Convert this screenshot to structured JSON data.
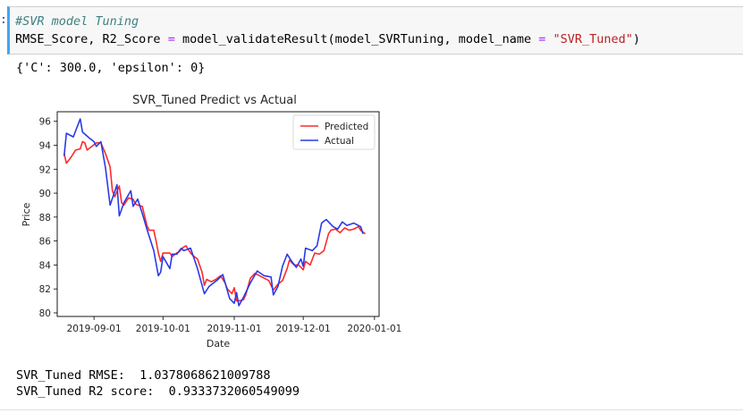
{
  "cell": {
    "prompt": ":",
    "code_comment": "#SVR model Tuning",
    "code_line2": {
      "lhs": "RMSE_Score, R2_Score ",
      "eq": "=",
      "call": " model_validateResult(model_SVRTuning, model_name ",
      "eq2": "=",
      "space": " ",
      "str": "\"SVR_Tuned\"",
      "close": ")"
    }
  },
  "output": {
    "params": "{'C': 300.0, 'epsilon': 0}",
    "rmse_line": "SVR_Tuned RMSE:  1.0378068621009788",
    "r2_line": "SVR_Tuned R2 score:  0.9333732060549099"
  },
  "chart_data": {
    "type": "line",
    "title": "SVR_Tuned Predict vs Actual",
    "xlabel": "Date",
    "ylabel": "Price",
    "xlim": [
      "2019-08-16",
      "2020-01-03"
    ],
    "ylim": [
      79.7,
      96.8
    ],
    "x_ticks": [
      "2019-09-01",
      "2019-10-01",
      "2019-11-01",
      "2019-12-01",
      "2020-01-01"
    ],
    "y_ticks": [
      80,
      82,
      84,
      86,
      88,
      90,
      92,
      94,
      96
    ],
    "legend": "top-right",
    "grid": false,
    "series": [
      {
        "name": "Predicted",
        "color": "#ff2a2a",
        "points": [
          [
            "2019-08-19",
            93.3
          ],
          [
            "2019-08-20",
            92.5
          ],
          [
            "2019-08-22",
            93.0
          ],
          [
            "2019-08-24",
            93.6
          ],
          [
            "2019-08-26",
            93.7
          ],
          [
            "2019-08-27",
            94.3
          ],
          [
            "2019-08-28",
            94.2
          ],
          [
            "2019-08-29",
            93.6
          ],
          [
            "2019-08-31",
            93.9
          ],
          [
            "2019-09-02",
            94.2
          ],
          [
            "2019-09-04",
            94.2
          ],
          [
            "2019-09-06",
            93.3
          ],
          [
            "2019-09-08",
            92.2
          ],
          [
            "2019-09-09",
            90.2
          ],
          [
            "2019-09-10",
            89.7
          ],
          [
            "2019-09-12",
            90.6
          ],
          [
            "2019-09-13",
            89.2
          ],
          [
            "2019-09-14",
            89.0
          ],
          [
            "2019-09-16",
            89.6
          ],
          [
            "2019-09-18",
            89.5
          ],
          [
            "2019-09-19",
            89.1
          ],
          [
            "2019-09-20",
            89.0
          ],
          [
            "2019-09-22",
            88.9
          ],
          [
            "2019-09-24",
            87.3
          ],
          [
            "2019-09-25",
            86.9
          ],
          [
            "2019-09-27",
            86.9
          ],
          [
            "2019-09-28",
            86.0
          ],
          [
            "2019-09-29",
            85.0
          ],
          [
            "2019-09-30",
            84.3
          ],
          [
            "2019-10-01",
            85.0
          ],
          [
            "2019-10-02",
            85.0
          ],
          [
            "2019-10-04",
            85.0
          ],
          [
            "2019-10-05",
            84.7
          ],
          [
            "2019-10-07",
            85.0
          ],
          [
            "2019-10-08",
            85.1
          ],
          [
            "2019-10-10",
            85.5
          ],
          [
            "2019-10-11",
            85.6
          ],
          [
            "2019-10-13",
            85.0
          ],
          [
            "2019-10-14",
            84.8
          ],
          [
            "2019-10-16",
            84.5
          ],
          [
            "2019-10-18",
            83.4
          ],
          [
            "2019-10-19",
            82.3
          ],
          [
            "2019-10-20",
            82.8
          ],
          [
            "2019-10-22",
            82.6
          ],
          [
            "2019-10-24",
            82.8
          ],
          [
            "2019-10-26",
            83.1
          ],
          [
            "2019-10-28",
            82.5
          ],
          [
            "2019-10-29",
            82.0
          ],
          [
            "2019-10-31",
            81.6
          ],
          [
            "2019-11-01",
            82.1
          ],
          [
            "2019-11-02",
            81.0
          ],
          [
            "2019-11-03",
            81.0
          ],
          [
            "2019-11-05",
            81.1
          ],
          [
            "2019-11-06",
            81.5
          ],
          [
            "2019-11-08",
            82.9
          ],
          [
            "2019-11-10",
            83.3
          ],
          [
            "2019-11-12",
            83.1
          ],
          [
            "2019-11-14",
            82.9
          ],
          [
            "2019-11-16",
            82.7
          ],
          [
            "2019-11-18",
            81.9
          ],
          [
            "2019-11-20",
            82.4
          ],
          [
            "2019-11-22",
            82.7
          ],
          [
            "2019-11-24",
            83.7
          ],
          [
            "2019-11-25",
            84.4
          ],
          [
            "2019-11-27",
            84.0
          ],
          [
            "2019-11-29",
            84.0
          ],
          [
            "2019-12-01",
            83.6
          ],
          [
            "2019-12-02",
            84.3
          ],
          [
            "2019-12-04",
            84.0
          ],
          [
            "2019-12-06",
            85.0
          ],
          [
            "2019-12-08",
            84.9
          ],
          [
            "2019-12-10",
            85.2
          ],
          [
            "2019-12-12",
            86.6
          ],
          [
            "2019-12-13",
            86.9
          ],
          [
            "2019-12-15",
            87.0
          ],
          [
            "2019-12-17",
            86.7
          ],
          [
            "2019-12-19",
            87.1
          ],
          [
            "2019-12-21",
            86.9
          ],
          [
            "2019-12-23",
            87.0
          ],
          [
            "2019-12-25",
            87.2
          ],
          [
            "2019-12-26",
            86.9
          ],
          [
            "2019-12-28",
            86.6
          ]
        ]
      },
      {
        "name": "Actual",
        "color": "#2a3ae8",
        "points": [
          [
            "2019-08-19",
            93.1
          ],
          [
            "2019-08-20",
            95.0
          ],
          [
            "2019-08-23",
            94.7
          ],
          [
            "2019-08-26",
            96.2
          ],
          [
            "2019-08-27",
            95.1
          ],
          [
            "2019-08-30",
            94.6
          ],
          [
            "2019-09-01",
            94.3
          ],
          [
            "2019-09-02",
            93.9
          ],
          [
            "2019-09-04",
            94.3
          ],
          [
            "2019-09-06",
            92.1
          ],
          [
            "2019-09-08",
            89.0
          ],
          [
            "2019-09-11",
            90.7
          ],
          [
            "2019-09-12",
            88.1
          ],
          [
            "2019-09-14",
            89.2
          ],
          [
            "2019-09-17",
            90.2
          ],
          [
            "2019-09-18",
            88.9
          ],
          [
            "2019-09-20",
            89.5
          ],
          [
            "2019-09-22",
            88.3
          ],
          [
            "2019-09-24",
            87.0
          ],
          [
            "2019-09-27",
            85.2
          ],
          [
            "2019-09-29",
            83.1
          ],
          [
            "2019-09-30",
            83.4
          ],
          [
            "2019-10-01",
            84.7
          ],
          [
            "2019-10-04",
            83.7
          ],
          [
            "2019-10-05",
            84.9
          ],
          [
            "2019-10-07",
            84.9
          ],
          [
            "2019-10-09",
            85.4
          ],
          [
            "2019-10-10",
            85.2
          ],
          [
            "2019-10-13",
            85.4
          ],
          [
            "2019-10-16",
            83.7
          ],
          [
            "2019-10-19",
            81.6
          ],
          [
            "2019-10-21",
            82.2
          ],
          [
            "2019-10-25",
            82.8
          ],
          [
            "2019-10-27",
            83.2
          ],
          [
            "2019-10-30",
            81.2
          ],
          [
            "2019-11-01",
            80.8
          ],
          [
            "2019-11-02",
            81.7
          ],
          [
            "2019-11-03",
            80.6
          ],
          [
            "2019-11-05",
            81.3
          ],
          [
            "2019-11-08",
            82.5
          ],
          [
            "2019-11-11",
            83.5
          ],
          [
            "2019-11-14",
            83.1
          ],
          [
            "2019-11-17",
            83.0
          ],
          [
            "2019-11-18",
            81.5
          ],
          [
            "2019-11-20",
            82.2
          ],
          [
            "2019-11-22",
            83.9
          ],
          [
            "2019-11-24",
            84.9
          ],
          [
            "2019-11-26",
            84.3
          ],
          [
            "2019-11-28",
            83.8
          ],
          [
            "2019-11-30",
            84.5
          ],
          [
            "2019-12-01",
            83.9
          ],
          [
            "2019-12-02",
            85.4
          ],
          [
            "2019-12-05",
            85.2
          ],
          [
            "2019-12-07",
            85.6
          ],
          [
            "2019-12-09",
            87.5
          ],
          [
            "2019-12-11",
            87.8
          ],
          [
            "2019-12-14",
            87.2
          ],
          [
            "2019-12-16",
            87.0
          ],
          [
            "2019-12-18",
            87.6
          ],
          [
            "2019-12-20",
            87.3
          ],
          [
            "2019-12-23",
            87.5
          ],
          [
            "2019-12-26",
            87.2
          ],
          [
            "2019-12-27",
            86.6
          ]
        ]
      }
    ]
  }
}
